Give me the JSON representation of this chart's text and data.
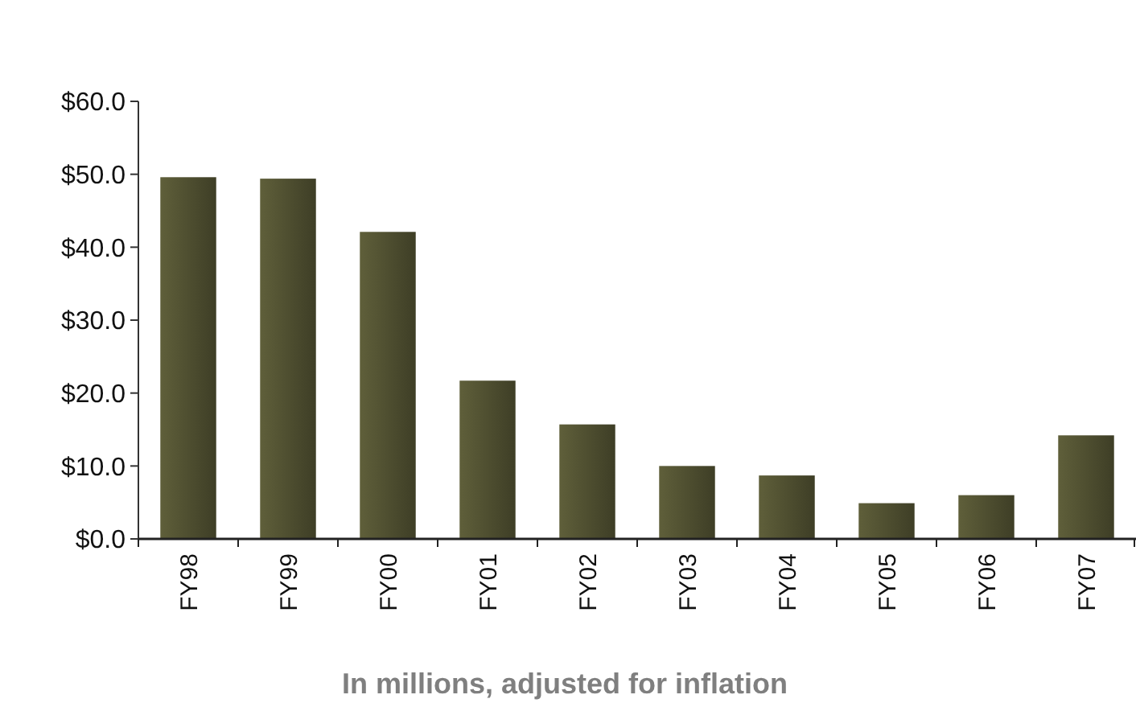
{
  "chart_data": {
    "type": "bar",
    "xlabel": "In millions, adjusted for inflation",
    "categories": [
      "FY98",
      "FY99",
      "FY00",
      "FY01",
      "FY02",
      "FY03",
      "FY04",
      "FY05",
      "FY06",
      "FY07"
    ],
    "values": [
      49.6,
      49.4,
      42.1,
      21.7,
      15.7,
      10.0,
      8.7,
      4.9,
      6.0,
      14.2
    ],
    "color": "#5f5f3a",
    "ylim": [
      0,
      60
    ],
    "yticks": [
      {
        "value": 0,
        "label": "$0.0"
      },
      {
        "value": 10,
        "label": "$10.0"
      },
      {
        "value": 20,
        "label": "$20.0"
      },
      {
        "value": 30,
        "label": "$30.0"
      },
      {
        "value": 40,
        "label": "$40.0"
      },
      {
        "value": 50,
        "label": "$50.0"
      },
      {
        "value": 60,
        "label": "$60.0"
      }
    ],
    "grid": false
  }
}
